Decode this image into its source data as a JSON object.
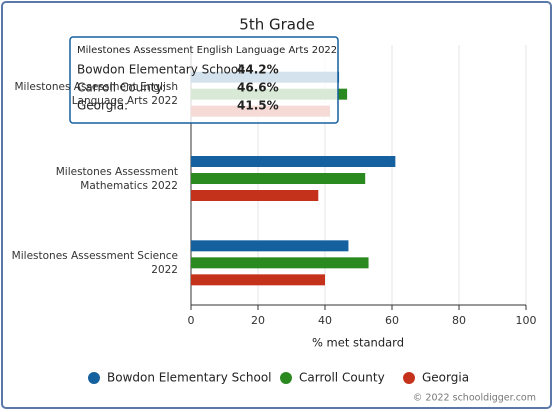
{
  "chart_data": {
    "type": "bar",
    "orientation": "horizontal",
    "title": "5th Grade",
    "categories": [
      "Milestones Assessment English Language Arts 2022",
      "Milestones Assessment Mathematics 2022",
      "Milestones Assessment Science 2022"
    ],
    "series": [
      {
        "name": "Bowdon Elementary School",
        "color": "#15609e",
        "values": [
          44.2,
          61,
          47
        ]
      },
      {
        "name": "Carroll County",
        "color": "#2a8a1f",
        "values": [
          46.6,
          52,
          53
        ]
      },
      {
        "name": "Georgia",
        "color": "#c5321c",
        "values": [
          41.5,
          38,
          40
        ]
      }
    ],
    "xlim": [
      0,
      100
    ],
    "xticks": [
      0,
      20,
      40,
      60,
      80,
      100
    ],
    "xlabel": "% met standard",
    "grid": true,
    "legend": "bottom",
    "tooltip": {
      "title": "Milestones Assessment English Language Arts 2022",
      "rows": [
        {
          "label": "Bowdon Elementary School:",
          "value": "44.2%"
        },
        {
          "label": "Carroll County:",
          "value": "46.6%"
        },
        {
          "label": "Georgia:",
          "value": "41.5%"
        }
      ]
    },
    "credit": "© 2022 schooldigger.com"
  }
}
